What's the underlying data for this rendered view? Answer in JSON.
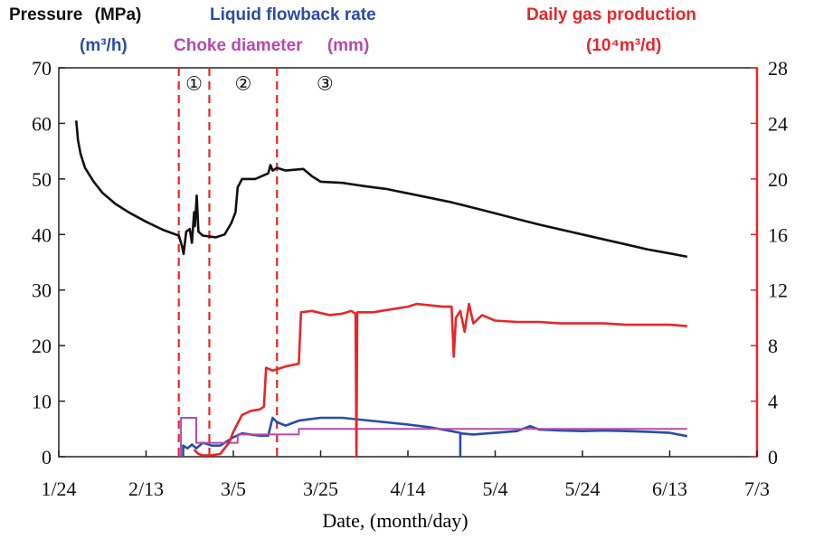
{
  "chart_data": {
    "type": "line",
    "xlabel": "Date, (month/day)",
    "x_ticks": [
      "1/24",
      "2/13",
      "3/5",
      "3/25",
      "4/14",
      "5/4",
      "5/24",
      "6/13",
      "7/3"
    ],
    "x_range_days": [
      0,
      160
    ],
    "y_left": {
      "range": [
        0,
        70
      ],
      "ticks": [
        "0",
        "10",
        "20",
        "30",
        "40",
        "50",
        "60",
        "70"
      ],
      "pressure_label": "Pressure",
      "pressure_unit": "(MPa)",
      "flow_label": "Liquid  flowback rate",
      "flow_unit": "(m³/h)",
      "choke_label": "Choke diameter",
      "choke_unit": "(mm)"
    },
    "y_right": {
      "range": [
        0,
        28
      ],
      "ticks": [
        "0",
        "4",
        "8",
        "12",
        "16",
        "20",
        "24",
        "28"
      ],
      "label": "Daily gas production",
      "unit": "(10⁴m³/d)"
    },
    "phase_labels": [
      "①",
      "②",
      "③"
    ],
    "phase_boundaries_day": [
      27.5,
      34.5,
      50
    ],
    "series": [
      {
        "name": "Pressure",
        "axis": "left",
        "color": "#111111",
        "points": [
          [
            4,
            60.5
          ],
          [
            4.4,
            57
          ],
          [
            5,
            54.5
          ],
          [
            6,
            52
          ],
          [
            8,
            49.5
          ],
          [
            10,
            47.5
          ],
          [
            13,
            45.5
          ],
          [
            16,
            44
          ],
          [
            20,
            42.3
          ],
          [
            24,
            40.8
          ],
          [
            27.5,
            39.8
          ],
          [
            28.2,
            38
          ],
          [
            28.6,
            36.5
          ],
          [
            29.2,
            40.5
          ],
          [
            30,
            41
          ],
          [
            30.5,
            38.5
          ],
          [
            31,
            44
          ],
          [
            31.2,
            41.5
          ],
          [
            31.6,
            47
          ],
          [
            32,
            40.5
          ],
          [
            33,
            39.8
          ],
          [
            36,
            39.5
          ],
          [
            38,
            40
          ],
          [
            39.5,
            42
          ],
          [
            40.5,
            44
          ],
          [
            41,
            48.5
          ],
          [
            42,
            50
          ],
          [
            45,
            50
          ],
          [
            48,
            51
          ],
          [
            48.5,
            52.5
          ],
          [
            49,
            51.5
          ],
          [
            50,
            52
          ],
          [
            52,
            51.5
          ],
          [
            56,
            51.8
          ],
          [
            58,
            50.5
          ],
          [
            60,
            49.5
          ],
          [
            65,
            49.3
          ],
          [
            70,
            48.7
          ],
          [
            75,
            48.2
          ],
          [
            80,
            47.4
          ],
          [
            85,
            46.6
          ],
          [
            90,
            45.8
          ],
          [
            95,
            44.8
          ],
          [
            100,
            43.8
          ],
          [
            105,
            42.8
          ],
          [
            110,
            41.8
          ],
          [
            115,
            40.9
          ],
          [
            120,
            40
          ],
          [
            125,
            39.1
          ],
          [
            130,
            38.2
          ],
          [
            135,
            37.3
          ],
          [
            140,
            36.6
          ],
          [
            144,
            36
          ]
        ]
      },
      {
        "name": "Liquid flowback rate",
        "axis": "left",
        "color": "#2a4ea3",
        "points": [
          [
            28.5,
            0
          ],
          [
            28.5,
            2
          ],
          [
            29.5,
            1.5
          ],
          [
            30.5,
            2.2
          ],
          [
            31.5,
            1.5
          ],
          [
            33,
            2.5
          ],
          [
            34,
            2.3
          ],
          [
            35,
            2
          ],
          [
            37,
            2
          ],
          [
            38,
            2.5
          ],
          [
            40,
            3.5
          ],
          [
            42,
            4.2
          ],
          [
            44,
            4
          ],
          [
            46,
            3.8
          ],
          [
            48,
            3.8
          ],
          [
            49,
            7
          ],
          [
            50,
            6.2
          ],
          [
            52,
            5.6
          ],
          [
            55,
            6.5
          ],
          [
            57,
            6.7
          ],
          [
            60,
            7
          ],
          [
            65,
            7
          ],
          [
            70,
            6.6
          ],
          [
            75,
            6.2
          ],
          [
            80,
            5.8
          ],
          [
            85,
            5.3
          ],
          [
            92,
            4.3
          ],
          [
            92,
            0
          ],
          [
            92,
            4.2
          ],
          [
            95,
            4
          ],
          [
            100,
            4.3
          ],
          [
            105,
            4.6
          ],
          [
            108,
            5.5
          ],
          [
            110,
            4.9
          ],
          [
            115,
            4.7
          ],
          [
            120,
            4.6
          ],
          [
            125,
            4.7
          ],
          [
            130,
            4.6
          ],
          [
            135,
            4.5
          ],
          [
            140,
            4.3
          ],
          [
            144,
            3.7
          ]
        ]
      },
      {
        "name": "Choke diameter",
        "axis": "left",
        "color": "#b54bb0",
        "points": [
          [
            28,
            0
          ],
          [
            28,
            7
          ],
          [
            31.5,
            7
          ],
          [
            31.5,
            2.5
          ],
          [
            41,
            2.5
          ],
          [
            41,
            4
          ],
          [
            55,
            4
          ],
          [
            55,
            5
          ],
          [
            144,
            5
          ]
        ]
      },
      {
        "name": "Daily gas production",
        "axis": "right",
        "color": "#e8262a",
        "points": [
          [
            31,
            0.5
          ],
          [
            32,
            0.2
          ],
          [
            33,
            0.1
          ],
          [
            35,
            0.1
          ],
          [
            37,
            0.2
          ],
          [
            39,
            1
          ],
          [
            40,
            1.8
          ],
          [
            42,
            3
          ],
          [
            44,
            3.3
          ],
          [
            46,
            3.4
          ],
          [
            47,
            3.6
          ],
          [
            47.5,
            6.4
          ],
          [
            49,
            6.2
          ],
          [
            52,
            6.5
          ],
          [
            55,
            6.7
          ],
          [
            55.5,
            10.4
          ],
          [
            58,
            10.5
          ],
          [
            62,
            10.2
          ],
          [
            65,
            10.3
          ],
          [
            67,
            10.5
          ],
          [
            68,
            10.3
          ],
          [
            68.2,
            0
          ],
          [
            68.4,
            10.4
          ],
          [
            72,
            10.4
          ],
          [
            76,
            10.6
          ],
          [
            80,
            10.8
          ],
          [
            82,
            11
          ],
          [
            85,
            10.9
          ],
          [
            88,
            10.8
          ],
          [
            90,
            10.8
          ],
          [
            90.5,
            7.2
          ],
          [
            91,
            10
          ],
          [
            92,
            10.5
          ],
          [
            93,
            9
          ],
          [
            94,
            11
          ],
          [
            95,
            9.6
          ],
          [
            97,
            10.2
          ],
          [
            100,
            9.8
          ],
          [
            105,
            9.7
          ],
          [
            110,
            9.7
          ],
          [
            115,
            9.6
          ],
          [
            120,
            9.6
          ],
          [
            125,
            9.6
          ],
          [
            130,
            9.5
          ],
          [
            135,
            9.5
          ],
          [
            140,
            9.5
          ],
          [
            144,
            9.4
          ]
        ]
      }
    ]
  }
}
